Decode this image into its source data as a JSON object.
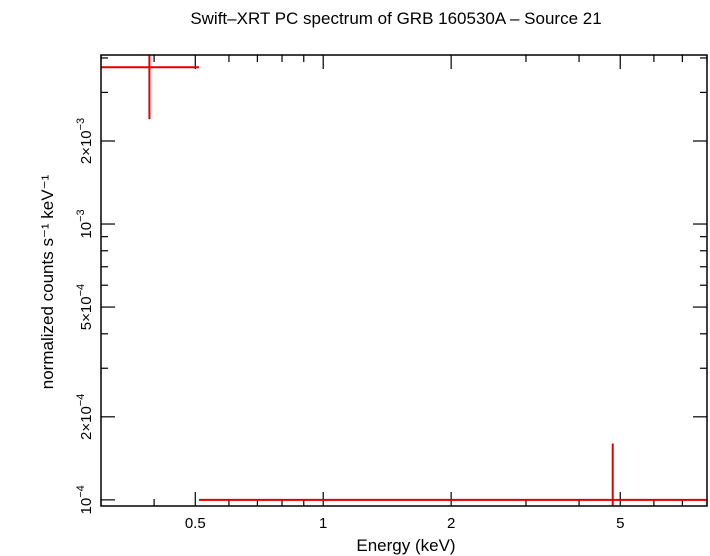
{
  "chart_data": {
    "type": "scatter",
    "title": "Swift–XRT PC spectrum of GRB 160530A – Source 21",
    "xlabel": "Energy (keV)",
    "ylabel": "normalized counts s⁻¹ keV⁻¹",
    "x_scale": "log",
    "y_scale": "log",
    "xlim": [
      0.3,
      8.0
    ],
    "ylim": [
      9.5e-05,
      0.0041
    ],
    "x_ticks": [
      {
        "value": 0.5,
        "label": "0.5"
      },
      {
        "value": 1,
        "label": "1"
      },
      {
        "value": 2,
        "label": "2"
      },
      {
        "value": 5,
        "label": "5"
      }
    ],
    "y_ticks": [
      {
        "value": 0.0001,
        "mantissa": "",
        "exponent": "−4",
        "label": "10⁻⁴"
      },
      {
        "value": 0.0002,
        "mantissa": "2×",
        "exponent": "−4",
        "label": "2×10⁻⁴"
      },
      {
        "value": 0.0005,
        "mantissa": "5×",
        "exponent": "−4",
        "label": "5×10⁻⁴"
      },
      {
        "value": 0.001,
        "mantissa": "",
        "exponent": "−3",
        "label": "10⁻³"
      },
      {
        "value": 0.002,
        "mantissa": "2×",
        "exponent": "−3",
        "label": "2×10⁻³"
      }
    ],
    "series": [
      {
        "color": "#e00000",
        "points": [
          {
            "x": 0.39,
            "x_lo": 0.3,
            "x_hi": 0.51,
            "y": 0.0037,
            "y_lo": 0.0024,
            "y_hi": 0.0041
          },
          {
            "x": 4.8,
            "x_lo": 0.51,
            "x_hi": 8.0,
            "y": 0.0001,
            "y_lo": 9.5e-05,
            "y_hi": 0.00016
          }
        ]
      }
    ]
  }
}
